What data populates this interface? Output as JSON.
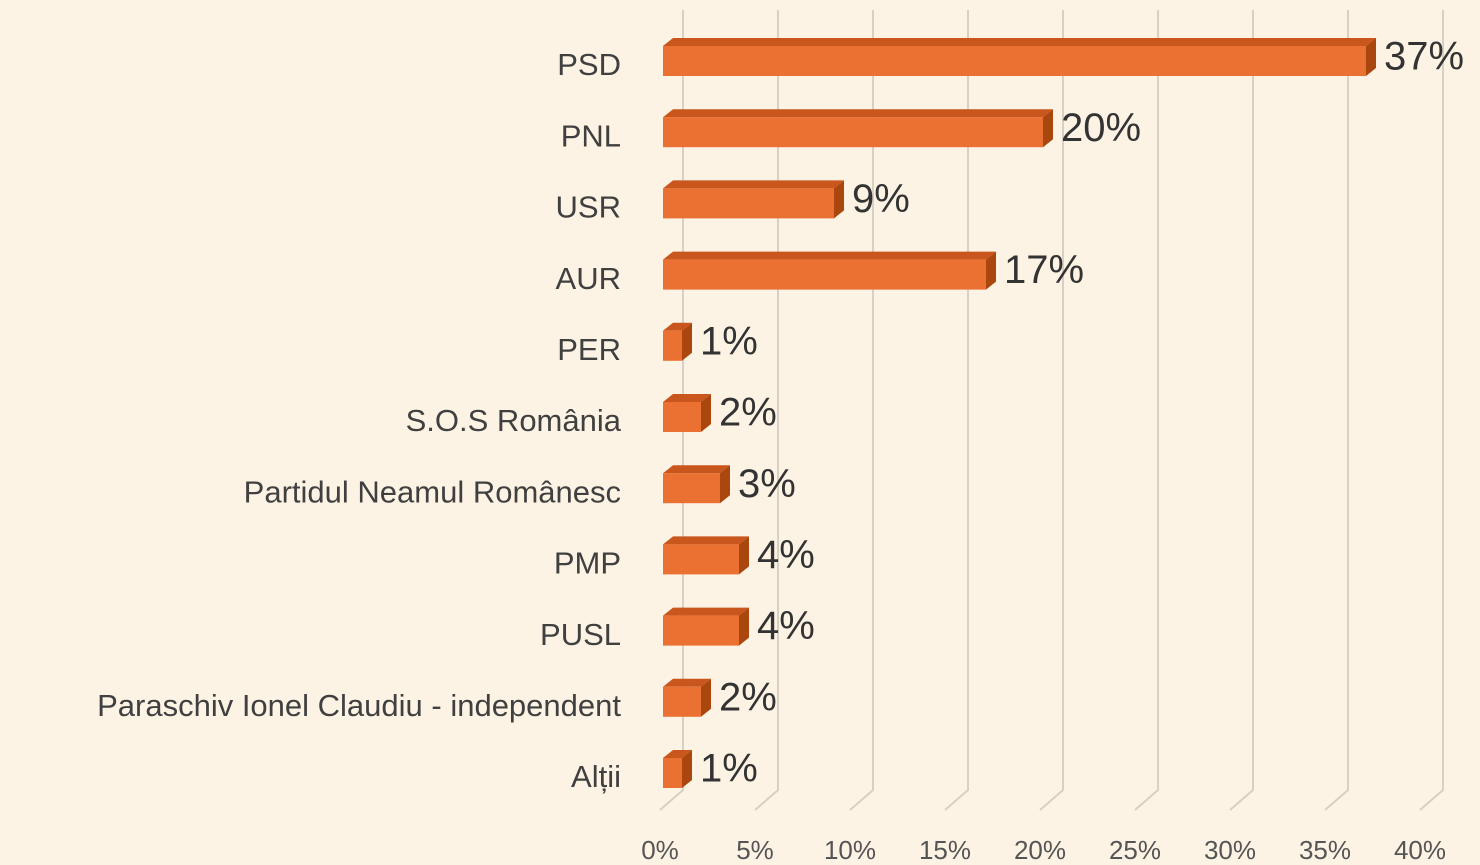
{
  "chart_data": {
    "type": "bar",
    "orientation": "horizontal",
    "categories": [
      "PSD",
      "PNL",
      "USR",
      "AUR",
      "PER",
      "S.O.S România",
      "Partidul Neamul Românesc",
      "PMP",
      "PUSL",
      "Paraschiv Ionel Claudiu - independent",
      "Alții"
    ],
    "values": [
      37,
      20,
      9,
      17,
      1,
      2,
      3,
      4,
      4,
      2,
      1
    ],
    "value_labels": [
      "37%",
      "20%",
      "9%",
      "17%",
      "1%",
      "2%",
      "3%",
      "4%",
      "4%",
      "2%",
      "1%"
    ],
    "color": "#ea7132",
    "xlim": [
      0,
      40
    ],
    "xticks": [
      {
        "value": 0,
        "label": "0%"
      },
      {
        "value": 5,
        "label": "5%"
      },
      {
        "value": 10,
        "label": "10%"
      },
      {
        "value": 15,
        "label": "15%"
      },
      {
        "value": 20,
        "label": "20%"
      },
      {
        "value": 25,
        "label": "25%"
      },
      {
        "value": 30,
        "label": "30%"
      },
      {
        "value": 35,
        "label": "35%"
      },
      {
        "value": 40,
        "label": "40%"
      }
    ],
    "grid": true
  }
}
